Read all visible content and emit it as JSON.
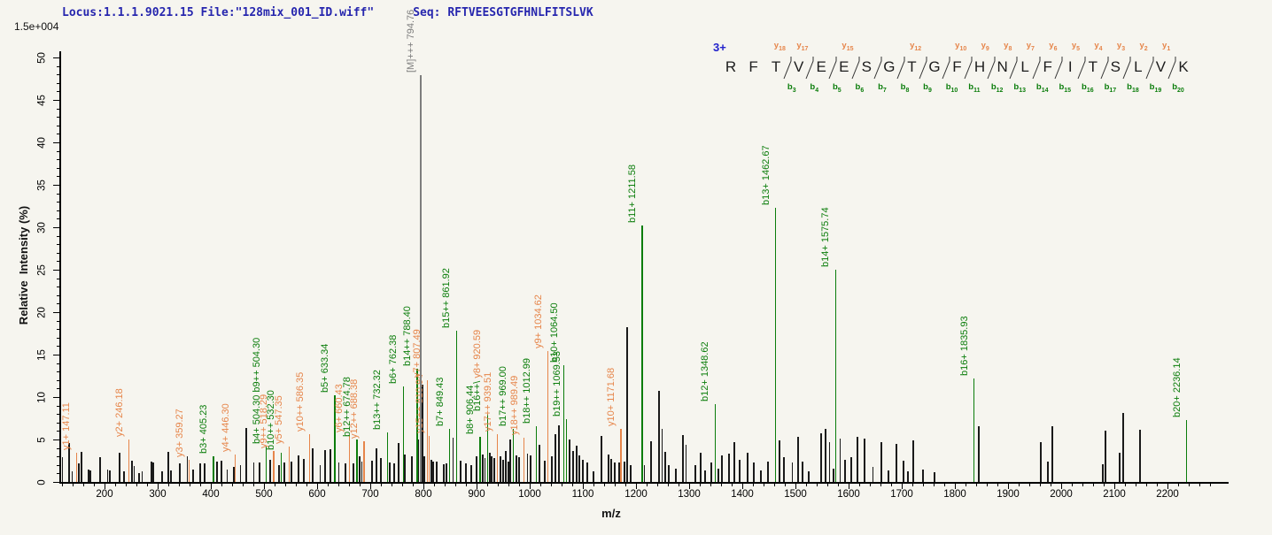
{
  "header": {
    "locus_file": "Locus:1.1.1.9021.15 File:\"128mix_001_ID.wiff\"",
    "seq": "Seq: RFTVEESGTGFHNLFITSLVK"
  },
  "colors": {
    "b_ion": "#0b7d0b",
    "y_ion": "#e6854a",
    "precursor": "#7d7d7d",
    "noise_peak": "#1a1a1a",
    "header_blue": "#2626ae",
    "charge_blue": "#2323cc",
    "axis": "#000000"
  },
  "chart_data": {
    "type": "bar",
    "kind": "ms2-fragmentation-spectrum",
    "xlabel": "m/z",
    "ylabel": "Relative  Intensity (%)",
    "y_scale_note": "1.5e+004",
    "xlim": [
      115,
      2315
    ],
    "ylim": [
      0,
      50
    ],
    "x_major_ticks": [
      200,
      300,
      400,
      500,
      600,
      700,
      800,
      900,
      1000,
      1100,
      1200,
      1300,
      1400,
      1500,
      1600,
      1700,
      1800,
      1900,
      2000,
      2100,
      2200
    ],
    "x_minor_step": 20,
    "y_major_ticks": [
      0,
      5,
      10,
      15,
      20,
      25,
      30,
      35,
      40,
      45,
      50
    ],
    "y_minor_step": 1,
    "legend": "off",
    "grid": "off",
    "precursor": {
      "label": "[M]+++ 794.76",
      "mz": 794.76,
      "intensity_pct": 47.9
    },
    "peptide": {
      "charge_label": "3+",
      "sequence": "RFTVEESGTGFHNLFITSLVK",
      "boundaries": [
        {
          "pos": 3,
          "y": "y18",
          "b": "b3"
        },
        {
          "pos": 4,
          "y": "y17",
          "b": "b4"
        },
        {
          "pos": 5,
          "y": null,
          "b": "b5"
        },
        {
          "pos": 6,
          "y": "y15",
          "b": "b6"
        },
        {
          "pos": 7,
          "y": null,
          "b": "b7"
        },
        {
          "pos": 8,
          "y": null,
          "b": "b8"
        },
        {
          "pos": 9,
          "y": "y12",
          "b": "b9"
        },
        {
          "pos": 10,
          "y": null,
          "b": "b10"
        },
        {
          "pos": 11,
          "y": "y10",
          "b": "b11"
        },
        {
          "pos": 12,
          "y": "y9",
          "b": "b12"
        },
        {
          "pos": 13,
          "y": "y8",
          "b": "b13"
        },
        {
          "pos": 14,
          "y": "y7",
          "b": "b14"
        },
        {
          "pos": 15,
          "y": "y6",
          "b": "b15"
        },
        {
          "pos": 16,
          "y": "y5",
          "b": "b16"
        },
        {
          "pos": 17,
          "y": "y4",
          "b": "b17"
        },
        {
          "pos": 18,
          "y": "y3",
          "b": "b18"
        },
        {
          "pos": 19,
          "y": "y2",
          "b": "b19"
        },
        {
          "pos": 20,
          "y": "y1",
          "b": "b20"
        }
      ]
    },
    "labeled_peaks": [
      {
        "mz": 147.11,
        "pct": 3.4,
        "series": "y",
        "label": "y1+ 147.11"
      },
      {
        "mz": 246.18,
        "pct": 5.0,
        "series": "y",
        "label": "y2+ 246.18"
      },
      {
        "mz": 359.27,
        "pct": 2.6,
        "series": "y",
        "label": "y3+ 359.27"
      },
      {
        "mz": 405.23,
        "pct": 3.0,
        "series": "b",
        "label": "b3+ 405.23"
      },
      {
        "mz": 446.3,
        "pct": 3.2,
        "series": "y",
        "label": "y4+ 446.30"
      },
      {
        "mz": 504.3,
        "pct": 4.2,
        "series": "b",
        "label_parts": [
          {
            "text": "b4+ 504.30",
            "series": "b"
          },
          {
            "text": "b9++ 504.30",
            "series": "b"
          }
        ]
      },
      {
        "mz": 518.29,
        "pct": 3.6,
        "series": "y",
        "label": "y9++ 518.29"
      },
      {
        "mz": 532.3,
        "pct": 3.4,
        "series": "b",
        "label": "b10++ 532.30"
      },
      {
        "mz": 547.35,
        "pct": 4.2,
        "series": "y",
        "label": "y5+ 547.35"
      },
      {
        "mz": 586.35,
        "pct": 5.6,
        "series": "y",
        "label": "y10++ 586.35"
      },
      {
        "mz": 633.34,
        "pct": 10.2,
        "series": "b",
        "label": "b5+ 633.34"
      },
      {
        "mz": 660.43,
        "pct": 5.5,
        "series": "y",
        "label": "y6+ 660.43"
      },
      {
        "mz": 674.78,
        "pct": 5.0,
        "series": "b",
        "label": "b12++ 674.78"
      },
      {
        "mz": 688.38,
        "pct": 4.8,
        "series": "y",
        "label": "y12++ 688.38"
      },
      {
        "mz": 732.32,
        "pct": 5.8,
        "series": "b",
        "label": "b13++ 732.32"
      },
      {
        "mz": 762.38,
        "pct": 11.2,
        "series": "b",
        "label": "b6+ 762.38"
      },
      {
        "mz": 788.4,
        "pct": 13.3,
        "series": "b",
        "label": "b14++ 788.40"
      },
      {
        "mz": 807.49,
        "pct": 12.0,
        "series": "y",
        "label": "y7+ 807.49"
      },
      {
        "mz": 810.94,
        "pct": 5.4,
        "series": "y",
        "label": "y15++ 810.94"
      },
      {
        "mz": 849.43,
        "pct": 6.3,
        "series": "b",
        "label": "b7+ 849.43"
      },
      {
        "mz": 861.92,
        "pct": 17.8,
        "series": "b",
        "label": "b15++ 861.92"
      },
      {
        "mz": 906.44,
        "pct": 5.3,
        "series": "b",
        "label": "b8+ 906.44"
      },
      {
        "mz": 920.59,
        "pct": 8.0,
        "series": "b",
        "label_parts": [
          {
            "text": "b16++\\",
            "series": "b"
          },
          {
            "text": "y8+ 920.59",
            "series": "y"
          }
        ]
      },
      {
        "mz": 939.51,
        "pct": 5.6,
        "series": "y",
        "label": "y17++ 939.51"
      },
      {
        "mz": 969.0,
        "pct": 6.3,
        "series": "b",
        "label": "b17++ 969.00"
      },
      {
        "mz": 989.49,
        "pct": 5.2,
        "series": "y",
        "label": "y18++ 989.49"
      },
      {
        "mz": 1012.99,
        "pct": 6.6,
        "series": "b",
        "label": "b18++ 1012.99"
      },
      {
        "mz": 1034.62,
        "pct": 15.4,
        "series": "y",
        "label": "y9+ 1034.62"
      },
      {
        "mz": 1064.5,
        "pct": 13.7,
        "series": "b",
        "label": "b10+ 1064.50"
      },
      {
        "mz": 1069.53,
        "pct": 7.4,
        "series": "b",
        "label": "b19++ 1069.53"
      },
      {
        "mz": 1171.68,
        "pct": 6.3,
        "series": "y",
        "label": "y10+ 1171.68"
      },
      {
        "mz": 1211.58,
        "pct": 30.2,
        "series": "b",
        "label": "b11+ 1211.58"
      },
      {
        "mz": 1348.62,
        "pct": 9.2,
        "series": "b",
        "label": "b12+ 1348.62"
      },
      {
        "mz": 1462.67,
        "pct": 32.3,
        "series": "b",
        "label": "b13+ 1462.67"
      },
      {
        "mz": 1575.74,
        "pct": 25.0,
        "series": "b",
        "label": "b14+ 1575.74"
      },
      {
        "mz": 1835.93,
        "pct": 12.2,
        "series": "b",
        "label": "b16+ 1835.93"
      },
      {
        "mz": 2236.14,
        "pct": 7.3,
        "series": "b",
        "label": "b20+ 2236.14"
      }
    ],
    "noise_peaks": [
      [
        121,
        2.9
      ],
      [
        133,
        4.6
      ],
      [
        139,
        1.3
      ],
      [
        152,
        2.2
      ],
      [
        157,
        3.5
      ],
      [
        170,
        1.5
      ],
      [
        173,
        1.4
      ],
      [
        192,
        2.9
      ],
      [
        206,
        1.5
      ],
      [
        210,
        1.4
      ],
      [
        228,
        3.4
      ],
      [
        237,
        1.2
      ],
      [
        252,
        2.5
      ],
      [
        256,
        1.9
      ],
      [
        265,
        1.0
      ],
      [
        271,
        1.3
      ],
      [
        288,
        2.4
      ],
      [
        292,
        2.3
      ],
      [
        308,
        1.2
      ],
      [
        320,
        3.5
      ],
      [
        325,
        1.4
      ],
      [
        342,
        2.2
      ],
      [
        356,
        3.0
      ],
      [
        367,
        1.5
      ],
      [
        380,
        2.2
      ],
      [
        388,
        2.2
      ],
      [
        412,
        2.4
      ],
      [
        420,
        2.5
      ],
      [
        431,
        1.5
      ],
      [
        443,
        1.8
      ],
      [
        456,
        2.0
      ],
      [
        467,
        6.4
      ],
      [
        481,
        2.3
      ],
      [
        492,
        2.3
      ],
      [
        512,
        2.6
      ],
      [
        528,
        2.0
      ],
      [
        538,
        2.3
      ],
      [
        552,
        2.4
      ],
      [
        565,
        3.1
      ],
      [
        575,
        2.7
      ],
      [
        592,
        4.0
      ],
      [
        606,
        2.0
      ],
      [
        615,
        3.8
      ],
      [
        625,
        3.9
      ],
      [
        641,
        2.3
      ],
      [
        653,
        2.2
      ],
      [
        668,
        2.2
      ],
      [
        680,
        3.0
      ],
      [
        684,
        2.4
      ],
      [
        703,
        2.5
      ],
      [
        712,
        4.0
      ],
      [
        720,
        2.8
      ],
      [
        737,
        2.3
      ],
      [
        745,
        2.2
      ],
      [
        753,
        4.6
      ],
      [
        765,
        3.2
      ],
      [
        778,
        3.0
      ],
      [
        790,
        5.0
      ],
      [
        798.5,
        11.5
      ],
      [
        802,
        3.0
      ],
      [
        815,
        2.6
      ],
      [
        818,
        2.4
      ],
      [
        825,
        2.4
      ],
      [
        838,
        2.1
      ],
      [
        843,
        2.2
      ],
      [
        856,
        5.2
      ],
      [
        870,
        2.5
      ],
      [
        880,
        2.2
      ],
      [
        890,
        2.0
      ],
      [
        900,
        3.0
      ],
      [
        912,
        3.2
      ],
      [
        916,
        2.8
      ],
      [
        925,
        3.4
      ],
      [
        928,
        3.0
      ],
      [
        933,
        2.8
      ],
      [
        945,
        3.0
      ],
      [
        950,
        2.6
      ],
      [
        955,
        3.6
      ],
      [
        960,
        2.4
      ],
      [
        963,
        5.0
      ],
      [
        975,
        3.1
      ],
      [
        980,
        2.9
      ],
      [
        996,
        3.3
      ],
      [
        1002,
        3.1
      ],
      [
        1018,
        4.4
      ],
      [
        1028,
        2.5
      ],
      [
        1042,
        3.0
      ],
      [
        1048,
        5.6
      ],
      [
        1055,
        6.7
      ],
      [
        1075,
        5.0
      ],
      [
        1082,
        3.6
      ],
      [
        1088,
        4.3
      ],
      [
        1093,
        3.1
      ],
      [
        1100,
        2.6
      ],
      [
        1108,
        2.3
      ],
      [
        1120,
        1.2
      ],
      [
        1135,
        5.4
      ],
      [
        1148,
        3.2
      ],
      [
        1153,
        2.7
      ],
      [
        1160,
        2.3
      ],
      [
        1168,
        2.3
      ],
      [
        1178,
        2.4
      ],
      [
        1183,
        18.2
      ],
      [
        1190,
        2.0
      ],
      [
        1216,
        2.0
      ],
      [
        1228,
        4.8
      ],
      [
        1243,
        10.7
      ],
      [
        1249,
        6.2
      ],
      [
        1255,
        3.5
      ],
      [
        1262,
        2.0
      ],
      [
        1275,
        1.6
      ],
      [
        1288,
        5.5
      ],
      [
        1294,
        4.4
      ],
      [
        1312,
        2.0
      ],
      [
        1322,
        3.4
      ],
      [
        1330,
        1.4
      ],
      [
        1342,
        2.3
      ],
      [
        1355,
        1.6
      ],
      [
        1362,
        3.1
      ],
      [
        1375,
        3.3
      ],
      [
        1385,
        4.7
      ],
      [
        1395,
        2.6
      ],
      [
        1410,
        3.4
      ],
      [
        1422,
        2.3
      ],
      [
        1435,
        1.4
      ],
      [
        1448,
        2.4
      ],
      [
        1470,
        4.9
      ],
      [
        1478,
        2.9
      ],
      [
        1494,
        2.3
      ],
      [
        1505,
        5.3
      ],
      [
        1513,
        2.4
      ],
      [
        1525,
        1.3
      ],
      [
        1548,
        5.7
      ],
      [
        1557,
        6.3
      ],
      [
        1564,
        4.7
      ],
      [
        1572,
        1.6
      ],
      [
        1584,
        5.1
      ],
      [
        1593,
        2.6
      ],
      [
        1605,
        2.9
      ],
      [
        1617,
        5.3
      ],
      [
        1630,
        5.1
      ],
      [
        1646,
        1.8
      ],
      [
        1662,
        4.7
      ],
      [
        1675,
        1.4
      ],
      [
        1690,
        4.5
      ],
      [
        1703,
        2.5
      ],
      [
        1712,
        1.3
      ],
      [
        1722,
        4.9
      ],
      [
        1740,
        1.5
      ],
      [
        1762,
        1.1
      ],
      [
        1845,
        6.6
      ],
      [
        1962,
        4.7
      ],
      [
        1975,
        2.4
      ],
      [
        1983,
        6.6
      ],
      [
        2078,
        2.1
      ],
      [
        2083,
        6.0
      ],
      [
        2110,
        3.4
      ],
      [
        2117,
        8.1
      ],
      [
        2148,
        6.1
      ]
    ]
  }
}
